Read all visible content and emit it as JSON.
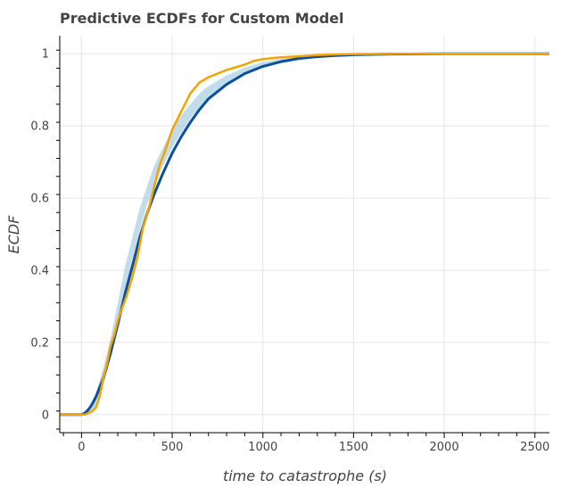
{
  "chart_data": {
    "type": "line",
    "title": "Predictive ECDFs for Custom Model",
    "xlabel": "time to catastrophe (s)",
    "ylabel": "ECDF",
    "xlim": [
      -120,
      2580
    ],
    "ylim": [
      -0.05,
      1.05
    ],
    "x_ticks": [
      0,
      500,
      1000,
      1500,
      2000,
      2500
    ],
    "y_ticks": [
      0,
      0.2,
      0.4,
      0.6,
      0.8,
      1
    ],
    "x_tick_labels": [
      "0",
      "500",
      "1000",
      "1500",
      "2000",
      "2500"
    ],
    "y_tick_labels": [
      "0",
      "0.2",
      "0.4",
      "0.6",
      "0.8",
      "1"
    ],
    "grid": true,
    "colors": {
      "band": "#a6cee3",
      "median": "#0b4f9c",
      "observed": "#f5a300"
    },
    "series": [
      {
        "kind": "band",
        "x": [
          -120,
          0,
          40,
          80,
          120,
          160,
          200,
          240,
          280,
          320,
          360,
          400,
          450,
          500,
          550,
          600,
          650,
          700,
          800,
          900,
          1000,
          1100,
          1200,
          1300,
          1400,
          1500,
          1700,
          2000,
          2580
        ],
        "lower": [
          0,
          0,
          0,
          0.02,
          0.08,
          0.16,
          0.25,
          0.34,
          0.43,
          0.51,
          0.58,
          0.63,
          0.69,
          0.74,
          0.78,
          0.82,
          0.85,
          0.875,
          0.915,
          0.945,
          0.96,
          0.975,
          0.983,
          0.988,
          0.992,
          0.995,
          0.998,
          1,
          1
        ],
        "upper": [
          0,
          0,
          0.02,
          0.06,
          0.13,
          0.21,
          0.31,
          0.41,
          0.49,
          0.57,
          0.63,
          0.69,
          0.74,
          0.79,
          0.83,
          0.86,
          0.89,
          0.91,
          0.94,
          0.962,
          0.977,
          0.986,
          0.991,
          0.995,
          0.997,
          0.999,
          1,
          1,
          1
        ]
      },
      {
        "kind": "median",
        "x": [
          -120,
          0,
          20,
          40,
          60,
          80,
          100,
          120,
          140,
          160,
          180,
          200,
          240,
          280,
          320,
          360,
          400,
          450,
          500,
          550,
          600,
          650,
          700,
          800,
          900,
          1000,
          1100,
          1200,
          1300,
          1400,
          1500,
          1700,
          2000,
          2580
        ],
        "y": [
          0,
          0,
          0.005,
          0.015,
          0.03,
          0.05,
          0.075,
          0.1,
          0.135,
          0.17,
          0.21,
          0.25,
          0.335,
          0.41,
          0.49,
          0.555,
          0.61,
          0.67,
          0.725,
          0.77,
          0.81,
          0.845,
          0.875,
          0.915,
          0.945,
          0.965,
          0.978,
          0.987,
          0.992,
          0.995,
          0.997,
          0.999,
          1,
          1
        ]
      },
      {
        "kind": "observed",
        "x": [
          -120,
          20,
          40,
          60,
          80,
          100,
          120,
          140,
          160,
          180,
          200,
          220,
          250,
          280,
          310,
          340,
          370,
          400,
          430,
          460,
          500,
          550,
          600,
          650,
          700,
          750,
          800,
          900,
          950,
          1000,
          1100,
          1200,
          1300,
          1400,
          1500,
          1800,
          2580
        ],
        "y": [
          0,
          0,
          0.005,
          0.01,
          0.02,
          0.05,
          0.1,
          0.14,
          0.19,
          0.22,
          0.26,
          0.29,
          0.33,
          0.38,
          0.44,
          0.52,
          0.57,
          0.63,
          0.69,
          0.73,
          0.79,
          0.84,
          0.89,
          0.92,
          0.935,
          0.945,
          0.955,
          0.97,
          0.98,
          0.985,
          0.99,
          0.993,
          0.996,
          0.998,
          0.999,
          1,
          1
        ]
      }
    ]
  }
}
